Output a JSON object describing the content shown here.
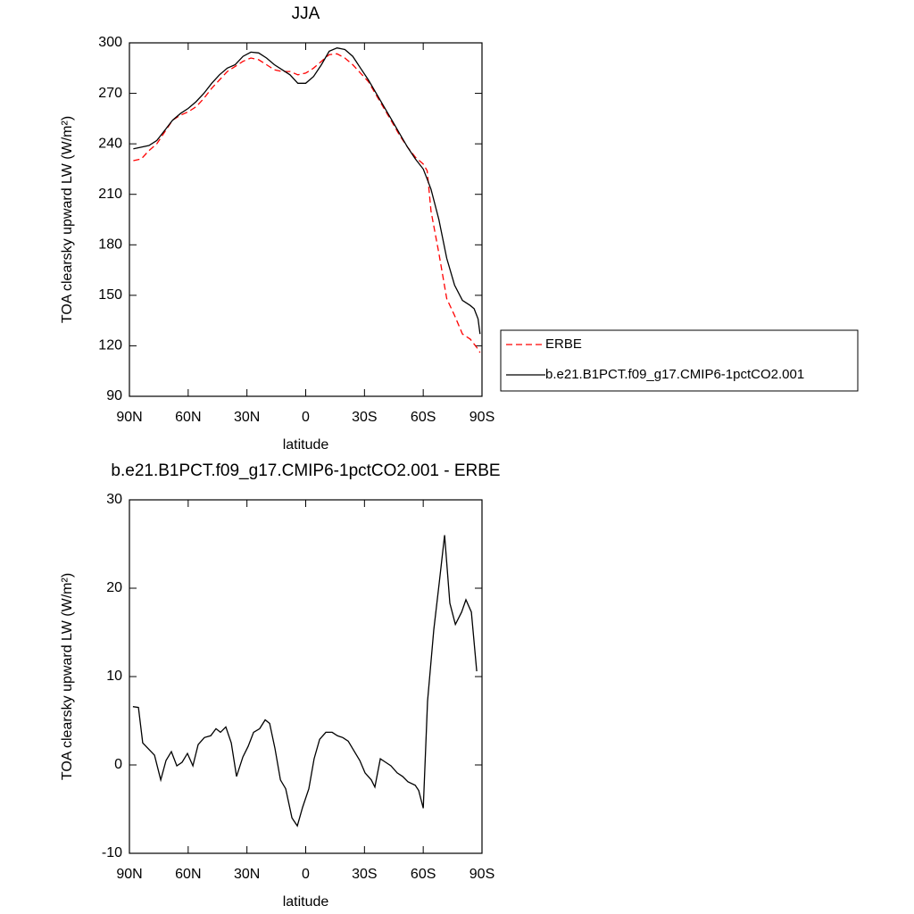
{
  "chart_data": [
    {
      "type": "line",
      "title": "JJA",
      "xlabel": "latitude",
      "ylabel": "TOA clearsky upward LW (W/m²)",
      "x": [
        88,
        84,
        80,
        76,
        72,
        68,
        64,
        60,
        56,
        52,
        48,
        44,
        40,
        36,
        32,
        28,
        24,
        20,
        16,
        12,
        8,
        4,
        0,
        -4,
        -8,
        -12,
        -16,
        -20,
        -24,
        -28,
        -32,
        -36,
        -40,
        -44,
        -48,
        -52,
        -56,
        -60,
        -62,
        -64,
        -68,
        -72,
        -76,
        -80,
        -84,
        -86,
        -88,
        -89
      ],
      "series": [
        {
          "name": "ERBE",
          "color": "#ff0000",
          "line_style": "dashed",
          "values": [
            230,
            231,
            236,
            240,
            247,
            254,
            257,
            259,
            262,
            267,
            273,
            278,
            283,
            286,
            289,
            291,
            290,
            287,
            284,
            283,
            283,
            281,
            282,
            285,
            289,
            293,
            293.5,
            291,
            287,
            282,
            277,
            269,
            261,
            253,
            245,
            238,
            232,
            228,
            224,
            200,
            175,
            148,
            138,
            127,
            124,
            121,
            118,
            116
          ]
        },
        {
          "name": "b.e21.B1PCT.f09_g17.CMIP6-1pctCO2.001",
          "color": "#000000",
          "line_style": "solid",
          "values": [
            237,
            238,
            239,
            242,
            248,
            254,
            258,
            261,
            265,
            270,
            276,
            281,
            285,
            287,
            292,
            294.5,
            294,
            291,
            287,
            284,
            281,
            276,
            276,
            280,
            287,
            295,
            297,
            296,
            292,
            285,
            278,
            270,
            262,
            254,
            246,
            238,
            231,
            225,
            219,
            213,
            195,
            172,
            156,
            147,
            144,
            142,
            136,
            127
          ]
        }
      ],
      "xlim": [
        90,
        -90
      ],
      "xticks": [
        {
          "value": 90,
          "label": "90N"
        },
        {
          "value": 60,
          "label": "60N"
        },
        {
          "value": 30,
          "label": "30N"
        },
        0,
        {
          "value": -30,
          "label": "30S"
        },
        {
          "value": -60,
          "label": "60S"
        },
        {
          "value": -90,
          "label": "90S"
        }
      ],
      "ylim": [
        90,
        300
      ],
      "yticks": [
        90,
        120,
        150,
        180,
        210,
        240,
        270,
        300
      ],
      "legend": "right"
    },
    {
      "type": "line",
      "title": "b.e21.B1PCT.f09_g17.CMIP6-1pctCO2.001 - ERBE",
      "xlabel": "latitude",
      "ylabel": "TOA clearsky upward LW (W/m²)",
      "x": [
        88.2,
        85.4,
        83.2,
        77.2,
        74.0,
        71.3,
        68.6,
        65.8,
        63.1,
        60.4,
        57.6,
        54.9,
        51.7,
        48.5,
        45.8,
        43.5,
        40.8,
        38.0,
        35.3,
        32.1,
        29.4,
        26.6,
        23.5,
        20.7,
        18.4,
        15.7,
        12.9,
        10.2,
        7.0,
        4.3,
        1.6,
        -1.6,
        -4.3,
        -7.1,
        -10.3,
        -13.5,
        -16.2,
        -18.9,
        -21.7,
        -24.9,
        -27.6,
        -30.3,
        -33.5,
        -35.3,
        -38.1,
        -40.8,
        -43.5,
        -46.7,
        -49.5,
        -52.2,
        -55.9,
        -57.7,
        -60.0,
        -62.2,
        -65.4,
        -68.2,
        -70.9,
        -73.6,
        -76.4,
        -79.6,
        -81.8,
        -84.6,
        -87.3
      ],
      "values": [
        6.6,
        6.5,
        2.5,
        1.1,
        -1.7,
        0.5,
        1.5,
        -0.1,
        0.3,
        1.3,
        -0.1,
        2.3,
        3.1,
        3.3,
        4.1,
        3.7,
        4.3,
        2.5,
        -1.3,
        0.9,
        2.1,
        3.7,
        4.1,
        5.1,
        4.7,
        1.9,
        -1.7,
        -2.7,
        -6.0,
        -6.9,
        -4.8,
        -2.7,
        0.7,
        2.9,
        3.7,
        3.7,
        3.3,
        3.1,
        2.7,
        1.5,
        0.5,
        -0.9,
        -1.7,
        -2.5,
        0.7,
        0.3,
        -0.1,
        -0.9,
        -1.3,
        -1.9,
        -2.3,
        -2.9,
        -4.9,
        7.2,
        15.3,
        20.7,
        26.0,
        18.3,
        15.9,
        17.3,
        18.7,
        17.3,
        10.6
      ],
      "color": "#000000",
      "line_style": "solid",
      "xlim": [
        90,
        -90
      ],
      "xticks": [
        {
          "value": 90,
          "label": "90N"
        },
        {
          "value": 60,
          "label": "60N"
        },
        {
          "value": 30,
          "label": "30N"
        },
        0,
        {
          "value": -30,
          "label": "30S"
        },
        {
          "value": -60,
          "label": "60S"
        },
        {
          "value": -90,
          "label": "90S"
        }
      ],
      "ylim": [
        -10,
        30
      ],
      "yticks": [
        -10,
        0,
        10,
        20,
        30
      ]
    }
  ]
}
